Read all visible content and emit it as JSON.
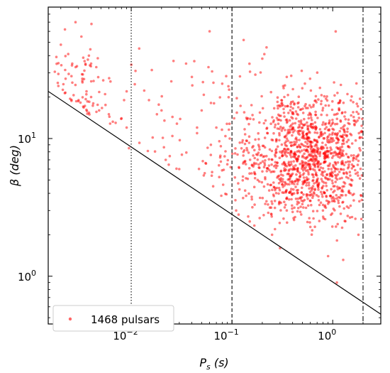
{
  "chart_data": {
    "type": "scatter",
    "xscale": "log",
    "yscale": "log",
    "xlim": [
      0.0015,
      3.0
    ],
    "ylim": [
      0.45,
      90
    ],
    "xlabel_main": "P",
    "xlabel_sub": "s",
    "xlabel_unit": " (s)",
    "ylabel_main": "β",
    "ylabel_unit": " (deg)",
    "xticks": [
      {
        "value": 0.01,
        "base": "10",
        "exp": "−2"
      },
      {
        "value": 0.1,
        "base": "10",
        "exp": "−1"
      },
      {
        "value": 1,
        "base": "10",
        "exp": "0"
      }
    ],
    "yticks": [
      {
        "value": 1,
        "base": "10",
        "exp": "0"
      },
      {
        "value": 10,
        "base": "10",
        "exp": "1"
      }
    ],
    "grid": false,
    "legend": {
      "placement": "lower-left",
      "label": "1468 pulsars"
    },
    "point_color": "#ff0000",
    "point_alpha": 0.5,
    "point_count": 1468,
    "boundary_line": {
      "points": [
        [
          0.0015,
          22
        ],
        [
          3.0,
          0.53
        ]
      ],
      "style": "solid"
    },
    "vlines": [
      {
        "x": 0.01,
        "style": "dotted"
      },
      {
        "x": 0.1,
        "style": "dashed"
      },
      {
        "x": 2.0,
        "style": "dashdot"
      }
    ],
    "sample_points": [
      [
        0.002,
        48
      ],
      [
        0.0022,
        62
      ],
      [
        0.0028,
        70
      ],
      [
        0.0032,
        55
      ],
      [
        0.0038,
        40
      ],
      [
        0.0045,
        33
      ],
      [
        0.0036,
        22
      ],
      [
        0.004,
        20
      ],
      [
        0.0042,
        18
      ],
      [
        0.0048,
        16
      ],
      [
        0.0055,
        21
      ],
      [
        0.006,
        15
      ],
      [
        0.007,
        13
      ],
      [
        0.008,
        14
      ],
      [
        0.009,
        12
      ],
      [
        0.003,
        19
      ],
      [
        0.0034,
        27
      ],
      [
        0.0026,
        35
      ],
      [
        0.009,
        22
      ],
      [
        0.0085,
        19
      ],
      [
        0.0095,
        8.5
      ],
      [
        0.012,
        45
      ],
      [
        0.015,
        19
      ],
      [
        0.018,
        15
      ],
      [
        0.02,
        16
      ],
      [
        0.022,
        7
      ],
      [
        0.025,
        26
      ],
      [
        0.03,
        6
      ],
      [
        0.035,
        35
      ],
      [
        0.04,
        28
      ],
      [
        0.045,
        12
      ],
      [
        0.05,
        16
      ],
      [
        0.06,
        60
      ],
      [
        0.065,
        4.5
      ],
      [
        0.07,
        12
      ],
      [
        0.08,
        25
      ],
      [
        0.09,
        6.5
      ],
      [
        0.095,
        10
      ],
      [
        0.11,
        3
      ],
      [
        0.13,
        8
      ],
      [
        0.15,
        2.5
      ],
      [
        0.18,
        5
      ],
      [
        0.2,
        38
      ],
      [
        0.22,
        3.5
      ],
      [
        0.25,
        2
      ],
      [
        0.3,
        1.6
      ],
      [
        0.35,
        28
      ],
      [
        0.4,
        14
      ],
      [
        0.5,
        9
      ],
      [
        0.6,
        7
      ],
      [
        0.7,
        5
      ],
      [
        0.8,
        3
      ],
      [
        1.0,
        11
      ],
      [
        1.2,
        6
      ],
      [
        1.5,
        4
      ],
      [
        1.8,
        2
      ],
      [
        0.3,
        8
      ],
      [
        0.45,
        18
      ],
      [
        0.9,
        1.4
      ],
      [
        1.1,
        0.9
      ]
    ]
  }
}
